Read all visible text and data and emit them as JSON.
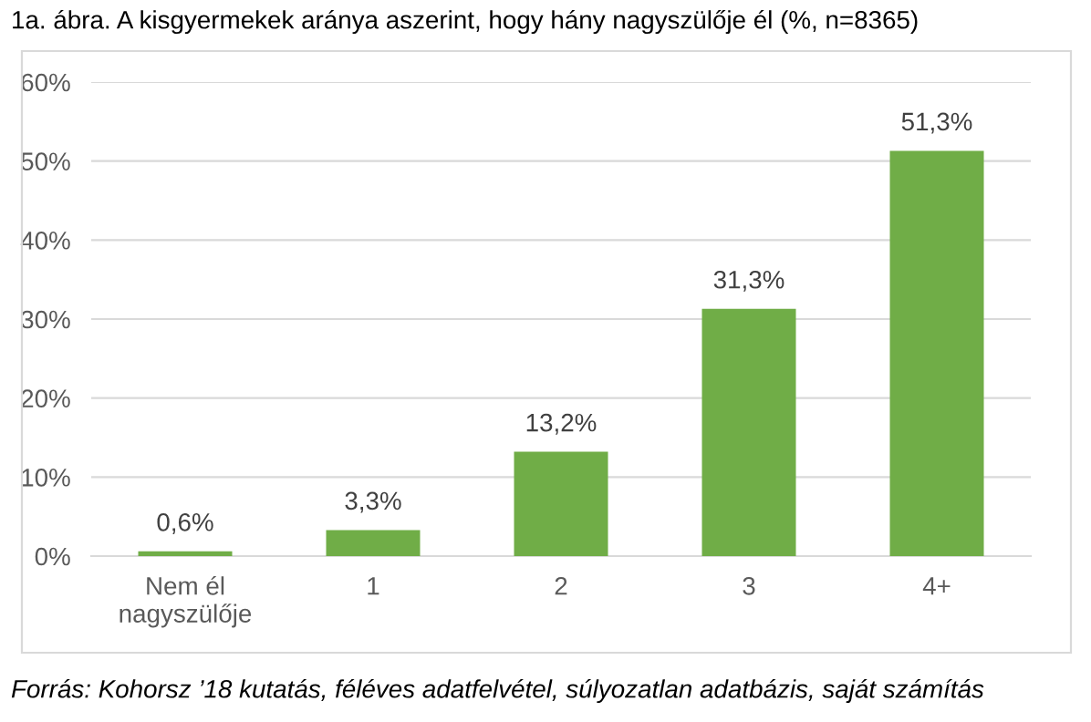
{
  "chart_data": {
    "type": "bar",
    "title": "1a. ábra. A kisgyermekek aránya aszerint, hogy hány nagyszülője él (%, n=8365)",
    "categories": [
      "Nem él\nnagyszülője",
      "1",
      "2",
      "3",
      "4+"
    ],
    "values": [
      0.6,
      3.3,
      13.2,
      31.3,
      51.3
    ],
    "value_labels": [
      "0,6%",
      "3,3%",
      "13,2%",
      "31,3%",
      "51,3%"
    ],
    "color": "#70ad47",
    "ylim": [
      0,
      60
    ],
    "yticks": [
      {
        "value": 0,
        "label": "0%"
      },
      {
        "value": 10,
        "label": "10%"
      },
      {
        "value": 20,
        "label": "20%"
      },
      {
        "value": 30,
        "label": "30%"
      },
      {
        "value": 40,
        "label": "40%"
      },
      {
        "value": 50,
        "label": "50%"
      },
      {
        "value": 60,
        "label": "60%"
      }
    ],
    "grid": "y",
    "legend": false,
    "annotations": [
      "Forrás: Kohorsz ’18 kutatás, féléves adatfelvétel, súlyozatlan adatbázis, saját számítás"
    ]
  }
}
